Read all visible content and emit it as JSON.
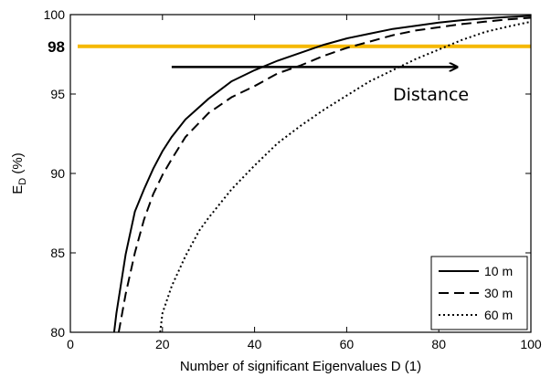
{
  "chart_data": {
    "type": "line",
    "xlabel": "Number of significant Eigenvalues D (1)",
    "ylabel_main": "E",
    "ylabel_sub": "D",
    "ylabel_suffix": " (%)",
    "xlim": [
      0,
      100
    ],
    "ylim": [
      80,
      100
    ],
    "x_ticks": [
      0,
      20,
      40,
      60,
      80,
      100
    ],
    "y_ticks": [
      80,
      85,
      90,
      95,
      100
    ],
    "grid": false,
    "legend_position": "bottom-right",
    "reference_line": {
      "y": 98,
      "label": "98",
      "color": "#f5b800"
    },
    "annotation": {
      "text": "Distance",
      "arrow_from_x": 22,
      "arrow_to_x": 84,
      "arrow_y": 96.7
    },
    "series": [
      {
        "name": "10 m",
        "dash": "solid",
        "x": [
          9.5,
          10,
          12,
          14,
          16,
          18,
          20,
          22,
          25,
          30,
          35,
          40,
          45,
          50,
          55,
          60,
          65,
          70,
          75,
          80,
          85,
          90,
          95,
          100
        ],
        "y": [
          80,
          81.2,
          84.9,
          87.6,
          89.0,
          90.3,
          91.4,
          92.3,
          93.4,
          94.7,
          95.8,
          96.5,
          97.1,
          97.6,
          98.1,
          98.5,
          98.8,
          99.1,
          99.3,
          99.5,
          99.65,
          99.75,
          99.85,
          99.92
        ]
      },
      {
        "name": "30 m",
        "dash": "long-dash",
        "x": [
          10.5,
          12,
          14,
          16,
          18,
          20,
          22,
          25,
          30,
          35,
          40,
          45,
          50,
          55,
          60,
          65,
          70,
          75,
          80,
          85,
          90,
          95,
          100
        ],
        "y": [
          80,
          82.4,
          85.0,
          87.1,
          88.7,
          89.9,
          90.9,
          92.3,
          93.8,
          94.8,
          95.5,
          96.3,
          96.8,
          97.4,
          97.9,
          98.3,
          98.7,
          99.0,
          99.2,
          99.4,
          99.55,
          99.7,
          99.8
        ]
      },
      {
        "name": "60 m",
        "dash": "dotted",
        "x": [
          19.5,
          20,
          22,
          25,
          28,
          30,
          35,
          40,
          45,
          50,
          55,
          60,
          65,
          70,
          75,
          80,
          85,
          90,
          95,
          100
        ],
        "y": [
          80,
          81.2,
          82.9,
          84.8,
          86.4,
          87.2,
          89.0,
          90.5,
          91.9,
          93.0,
          94.0,
          94.9,
          95.8,
          96.5,
          97.2,
          97.8,
          98.4,
          98.9,
          99.25,
          99.55
        ]
      }
    ]
  },
  "colors": {
    "axis": "#000000",
    "reference": "#f5b800",
    "lines": "#000000"
  }
}
